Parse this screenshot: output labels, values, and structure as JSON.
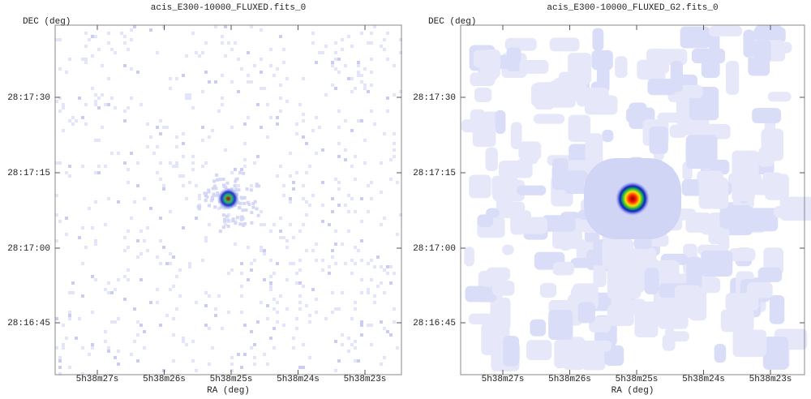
{
  "panels": [
    {
      "title": "acis_E300-10000_FLUXED.fits_0",
      "y_label": "DEC (deg)",
      "x_label": "RA (deg)",
      "y_tick_labels": [
        "28:17:30",
        "28:17:15",
        "28:17:00",
        "28:16:45"
      ],
      "x_tick_labels": [
        "5h38m27s",
        "5h38m26s",
        "5h38m25s",
        "5h38m24s",
        "5h38m23s"
      ]
    },
    {
      "title": "acis_E300-10000_FLUXED_G2.fits_0",
      "y_label": "DEC (deg)",
      "x_label": "RA (deg)",
      "y_tick_labels": [
        "28:17:30",
        "28:17:15",
        "28:17:00",
        "28:16:45"
      ],
      "x_tick_labels": [
        "5h38m27s",
        "5h38m26s",
        "5h38m25s",
        "5h38m24s",
        "5h38m23s"
      ]
    }
  ]
}
